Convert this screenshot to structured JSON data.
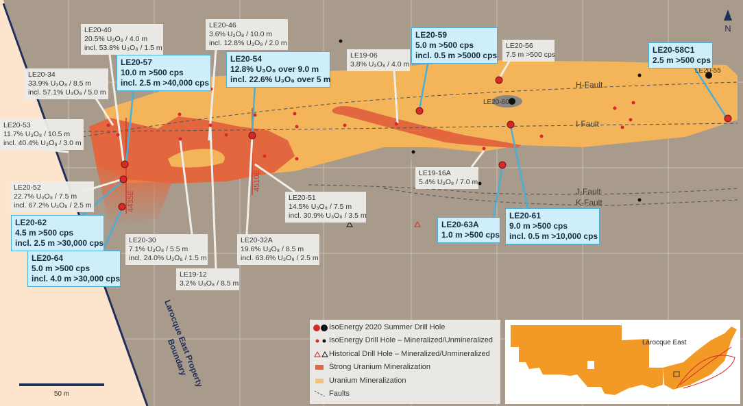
{
  "callouts": [
    {
      "id": "LE20-40",
      "lines": [
        "20.5% U₃O₈ / 4.0 m",
        "incl. 53.8% U₃O₈ / 1.5 m"
      ]
    },
    {
      "id": "LE20-46",
      "lines": [
        "3.6% U₃O₈ / 10.0 m",
        "incl. 12.8% U₃O₈ / 2.0 m"
      ]
    },
    {
      "id": "LE20-57",
      "lines": [
        "10.0 m >500 cps",
        "incl. 2.5 m >40,000 cps"
      ]
    },
    {
      "id": "LE20-54",
      "lines": [
        "12.8% U₃O₈ over 9.0 m",
        "incl. 22.6% U₃O₈ over 5 m"
      ]
    },
    {
      "id": "LE20-34",
      "lines": [
        "33.9% U₃O₈ / 8.5 m",
        "incl. 57.1% U₃O₈ / 5.0 m"
      ]
    },
    {
      "id": "LE19-06",
      "lines": [
        "3.8% U₃O₈ / 4.0 m"
      ]
    },
    {
      "id": "LE20-59",
      "lines": [
        "5.0 m >500 cps",
        "incl. 0.5 m >5000 cps"
      ]
    },
    {
      "id": "LE20-56",
      "lines": [
        "7.5 m >500 cps"
      ]
    },
    {
      "id": "LE20-58C1",
      "lines": [
        "2.5 m >500 cps"
      ]
    },
    {
      "id": "LE20-53",
      "lines": [
        "11.7% U₃O₈ / 10.5 m",
        "incl. 40.4% U₃O₈ / 3.0 m"
      ]
    },
    {
      "id": "LE20-52",
      "lines": [
        "22.7% U₃O₈ / 7.5 m",
        "incl. 67.2% U₃O₈ / 2.5 m"
      ]
    },
    {
      "id": "LE20-62",
      "lines": [
        "4.5 m >500 cps",
        "incl. 2.5 m >30,000 cps"
      ]
    },
    {
      "id": "LE20-64",
      "lines": [
        "5.0 m >500 cps",
        "incl. 4.0 m >30,000 cps"
      ]
    },
    {
      "id": "LE20-30",
      "lines": [
        "7.1% U₃O₈ / 5.5 m",
        "incl. 24.0% U₃O₈ / 1.5 m"
      ]
    },
    {
      "id": "LE19-12",
      "lines": [
        "3.2% U₃O₈ / 8.5 m"
      ]
    },
    {
      "id": "LE20-32A",
      "lines": [
        "19.6% U₃O₈ / 8.5 m",
        "incl. 63.6% U₃O₈ / 2.5 m"
      ]
    },
    {
      "id": "LE20-51",
      "lines": [
        "14.5% U₃O₈ / 7.5 m",
        "incl. 30.9% U₃O₈ / 3.5 m"
      ]
    },
    {
      "id": "LE19-16A",
      "lines": [
        "5.4% U₃O₈ / 7.0 m"
      ]
    },
    {
      "id": "LE20-63A",
      "lines": [
        "1.0 m >500 cps"
      ]
    },
    {
      "id": "LE20-61",
      "lines": [
        "9.0 m >500 cps",
        "incl. 0.5 m >10,000 cps"
      ]
    }
  ],
  "point_labels": [
    "LE20-60",
    "LE20-55"
  ],
  "faults": [
    "H-Fault",
    "I-Fault",
    "J-Fault",
    "K-Fault"
  ],
  "section_lines": [
    "4435E",
    "4510E"
  ],
  "north": "N",
  "scale": "50 m",
  "boundary": [
    "Larocque East Property",
    "Boundary"
  ],
  "legend": [
    "IsoEnergy 2020 Summer Drill Hole",
    "IsoEnergy Drill Hole – Mineralized/Unmineralized",
    "Historical Drill Hole – Mineralized/Unmineralized",
    "Strong Uranium Mineralization",
    "Uranium  Mineralization",
    "Faults"
  ],
  "inset_label": "Larocque East"
}
